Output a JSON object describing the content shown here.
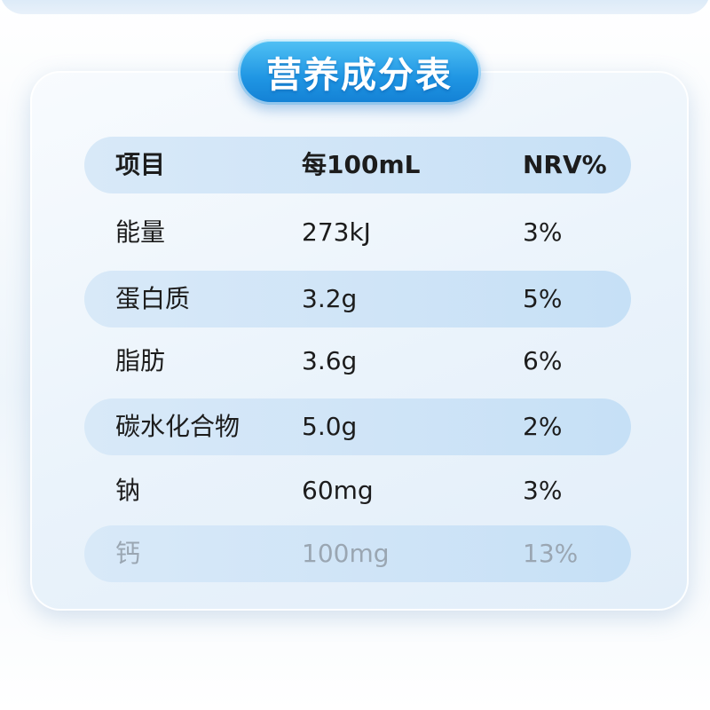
{
  "title": "营养成分表",
  "columns": [
    "项目",
    "每100mL",
    "NRV%"
  ],
  "rows": [
    {
      "item": "能量",
      "amount": "273kJ",
      "nrv": "3%"
    },
    {
      "item": "蛋白质",
      "amount": "3.2g",
      "nrv": "5%"
    },
    {
      "item": "脂肪",
      "amount": "3.6g",
      "nrv": "6%"
    },
    {
      "item": "碳水化合物",
      "amount": "5.0g",
      "nrv": "2%"
    },
    {
      "item": "钠",
      "amount": "60mg",
      "nrv": "3%"
    },
    {
      "item": "钙",
      "amount": "100mg",
      "nrv": "13%"
    }
  ],
  "colors": {
    "title_pill": "#1f95e3",
    "row_band": "#cfe4f7",
    "text": "#1c1c1c",
    "faded_text": "#9aa6b2"
  }
}
